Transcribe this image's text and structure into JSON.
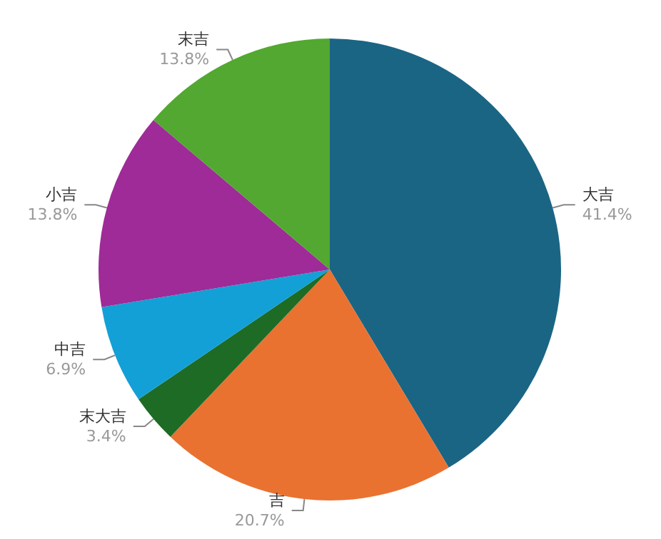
{
  "chart_data": {
    "type": "pie",
    "categories": [
      "大吉",
      "吉",
      "末大吉",
      "中吉",
      "小吉",
      "末吉"
    ],
    "values": [
      41.4,
      20.7,
      3.4,
      6.9,
      13.8,
      13.8
    ],
    "colors": [
      "#1a6584",
      "#e97231",
      "#1e6b25",
      "#13a0d6",
      "#9e2b97",
      "#52a830"
    ],
    "value_labels": [
      "41.4%",
      "20.7%",
      "3.4%",
      "6.9%",
      "13.8%",
      "13.8%"
    ],
    "legend": false
  }
}
